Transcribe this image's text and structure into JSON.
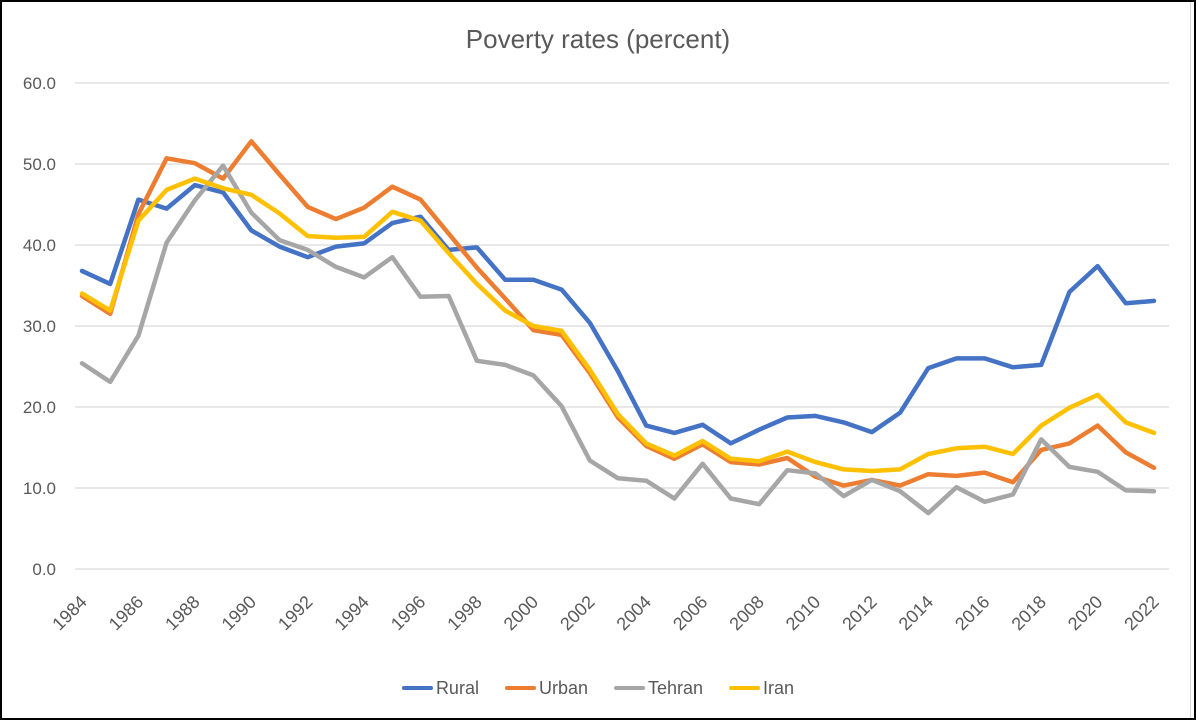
{
  "window": {
    "background": "#FFFFFF",
    "frame_border_color": "#000000"
  },
  "chart_data": {
    "type": "line",
    "title": "Poverty rates (percent)",
    "xlabel": "",
    "ylabel": "",
    "ylim": [
      0,
      60
    ],
    "y_tick_labels": [
      "0.0",
      "10.0",
      "20.0",
      "30.0",
      "40.0",
      "50.0",
      "60.0"
    ],
    "x_tick_step": 2,
    "grid": "horizontal",
    "gridline_color": "#D9D9D9",
    "text_color": "#595959",
    "legend_position": "bottom",
    "x": [
      1984,
      1985,
      1986,
      1987,
      1988,
      1989,
      1990,
      1991,
      1992,
      1993,
      1994,
      1995,
      1996,
      1997,
      1998,
      1999,
      2000,
      2001,
      2002,
      2003,
      2004,
      2005,
      2006,
      2007,
      2008,
      2009,
      2010,
      2011,
      2012,
      2013,
      2014,
      2015,
      2016,
      2017,
      2018,
      2019,
      2020,
      2021,
      2022
    ],
    "series": [
      {
        "name": "Rural",
        "color": "#4472C4",
        "values": [
          36.8,
          35.2,
          45.6,
          44.5,
          47.4,
          46.5,
          41.8,
          39.8,
          38.5,
          39.8,
          40.2,
          42.7,
          43.5,
          39.4,
          39.7,
          35.7,
          35.7,
          34.5,
          30.4,
          24.4,
          17.7,
          16.8,
          17.8,
          15.5,
          17.2,
          18.7,
          18.9,
          18.1,
          16.9,
          19.3,
          24.8,
          26.0,
          26.0,
          24.9,
          25.2,
          34.2,
          37.4,
          32.8,
          33.1
        ]
      },
      {
        "name": "Urban",
        "color": "#ED7D31",
        "values": [
          33.7,
          31.5,
          43.8,
          50.7,
          50.1,
          48.2,
          52.8,
          48.7,
          44.7,
          43.2,
          44.6,
          47.2,
          45.6,
          41.4,
          37.2,
          33.4,
          29.5,
          28.9,
          24.2,
          18.7,
          15.2,
          13.6,
          15.4,
          13.2,
          12.9,
          13.7,
          11.4,
          10.3,
          11.0,
          10.3,
          11.7,
          11.5,
          11.9,
          10.7,
          14.7,
          15.5,
          17.7,
          14.4,
          12.5
        ]
      },
      {
        "name": "Tehran",
        "color": "#A6A6A6",
        "values": [
          25.4,
          23.1,
          28.8,
          40.3,
          45.5,
          49.8,
          44.0,
          40.6,
          39.4,
          37.3,
          36.0,
          38.5,
          33.6,
          33.7,
          25.7,
          25.2,
          23.9,
          20.1,
          13.4,
          11.2,
          10.9,
          8.7,
          13.0,
          8.7,
          8.0,
          12.2,
          11.8,
          9.0,
          11.0,
          9.6,
          6.9,
          10.1,
          8.3,
          9.2,
          16.0,
          12.6,
          12.0,
          9.7,
          9.6
        ]
      },
      {
        "name": "Iran",
        "color": "#FFC000",
        "values": [
          34.0,
          31.9,
          43.0,
          46.8,
          48.2,
          47.0,
          46.2,
          43.9,
          41.1,
          40.9,
          41.0,
          44.1,
          43.0,
          39.0,
          35.2,
          31.9,
          30.0,
          29.4,
          24.6,
          19.1,
          15.5,
          14.0,
          15.8,
          13.6,
          13.3,
          14.5,
          13.2,
          12.3,
          12.1,
          12.3,
          14.2,
          14.9,
          15.1,
          14.2,
          17.7,
          19.9,
          21.5,
          18.1,
          16.8
        ]
      }
    ]
  }
}
